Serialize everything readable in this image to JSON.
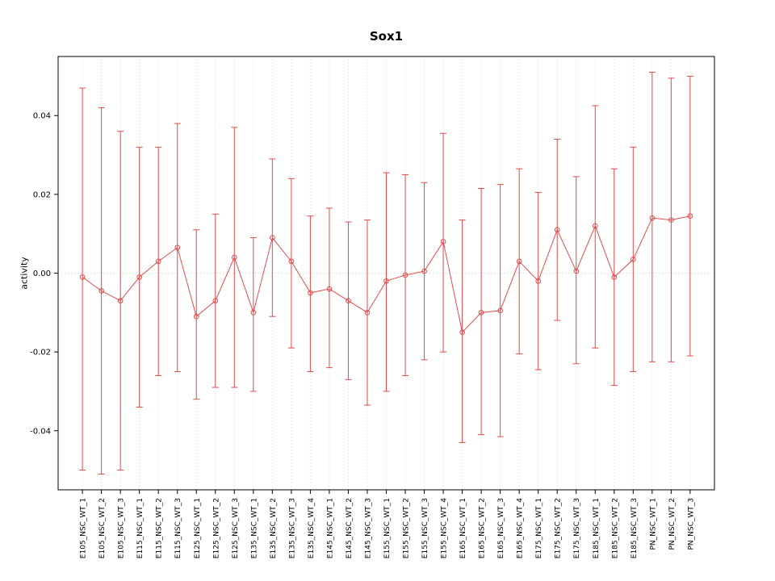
{
  "page": {
    "background": "#ffffff"
  },
  "chart_data": {
    "type": "line",
    "title": "Sox1",
    "xlabel": "",
    "ylabel": "activity",
    "ylim": [
      -0.055,
      0.055
    ],
    "yticks": [
      -0.04,
      -0.02,
      0,
      0.02,
      0.04
    ],
    "grid": "vertical dotted gridline at every category plus dotted horizontal zero line",
    "legend": "none",
    "marker": "open-circle",
    "error_bars": true,
    "series_color": "#e34a4a",
    "grid_color": "#d9d9d9",
    "axis_color": "#000000",
    "categories": [
      "E105_NSC_WT_1",
      "E105_NSC_WT_2",
      "E105_NSC_WT_3",
      "E115_NSC_WT_1",
      "E115_NSC_WT_2",
      "E115_NSC_WT_3",
      "E125_NSC_WT_1",
      "E125_NSC_WT_2",
      "E125_NSC_WT_3",
      "E135_NSC_WT_1",
      "E135_NSC_WT_2",
      "E135_NSC_WT_3",
      "E135_NSC_WT_4",
      "E145_NSC_WT_1",
      "E145_NSC_WT_2",
      "E145_NSC_WT_3",
      "E155_NSC_WT_1",
      "E155_NSC_WT_2",
      "E155_NSC_WT_3",
      "E155_NSC_WT_4",
      "E165_NSC_WT_1",
      "E165_NSC_WT_2",
      "E165_NSC_WT_3",
      "E165_NSC_WT_4",
      "E175_NSC_WT_1",
      "E175_NSC_WT_2",
      "E175_NSC_WT_3",
      "E185_NSC_WT_1",
      "E185_NSC_WT_2",
      "E185_NSC_WT_3",
      "PN_NSC_WT_1",
      "PN_NSC_WT_2",
      "PN_NSC_WT_3"
    ],
    "series": [
      {
        "name": "activity",
        "values": [
          -0.001,
          -0.0045,
          -0.007,
          -0.001,
          0.003,
          0.0065,
          -0.011,
          -0.007,
          0.004,
          -0.01,
          0.009,
          0.003,
          -0.005,
          -0.004,
          -0.007,
          -0.01,
          -0.002,
          -0.0005,
          0.0005,
          0.008,
          -0.015,
          -0.01,
          -0.0095,
          0.003,
          -0.002,
          0.011,
          0.0005,
          0.012,
          -0.001,
          0.0035,
          0.014,
          0.0135,
          0.0145
        ],
        "upper": [
          0.047,
          0.042,
          0.036,
          0.032,
          0.032,
          0.038,
          0.011,
          0.015,
          0.037,
          0.009,
          0.029,
          0.024,
          0.0145,
          0.0165,
          0.013,
          0.0135,
          0.0255,
          0.025,
          0.023,
          0.0355,
          0.0135,
          0.0215,
          0.0225,
          0.0265,
          0.0205,
          0.034,
          0.0245,
          0.0425,
          0.0265,
          0.032,
          0.051,
          0.0495,
          0.05
        ],
        "lower": [
          -0.05,
          -0.051,
          -0.05,
          -0.034,
          -0.026,
          -0.025,
          -0.032,
          -0.029,
          -0.029,
          -0.03,
          -0.011,
          -0.019,
          -0.025,
          -0.024,
          -0.027,
          -0.0335,
          -0.03,
          -0.026,
          -0.022,
          -0.02,
          -0.043,
          -0.041,
          -0.0415,
          -0.0205,
          -0.0245,
          -0.012,
          -0.023,
          -0.019,
          -0.0285,
          -0.025,
          -0.0225,
          -0.0225,
          -0.021
        ]
      }
    ]
  }
}
